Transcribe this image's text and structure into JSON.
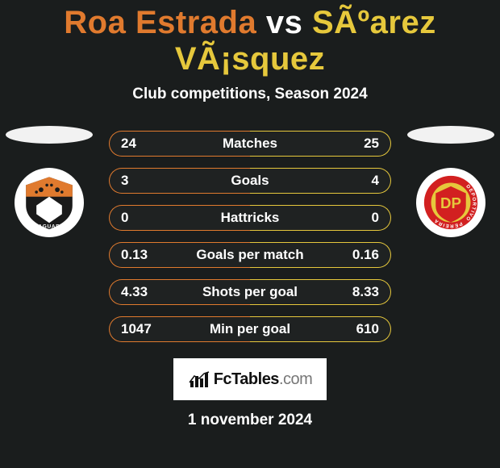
{
  "colors": {
    "background": "#1a1d1d",
    "text": "#ffffff",
    "player1_accent": "#e07a2e",
    "player2_accent": "#e6c83c",
    "title_player1": "#e07a2e",
    "title_player2": "#e6c83c",
    "title_vs": "#ffffff",
    "row_border_player1": "#e07a2e",
    "row_border_player2": "#e6c83c",
    "slot_bg": "#f2f2f2",
    "crest_bg": "#ffffff"
  },
  "title": {
    "player1": "Roa Estrada",
    "vs": "vs",
    "player2": "SÃºarez VÃ¡squez"
  },
  "subtitle": "Club competitions, Season 2024",
  "rows": [
    {
      "label": "Matches",
      "left": "24",
      "right": "25"
    },
    {
      "label": "Goals",
      "left": "3",
      "right": "4"
    },
    {
      "label": "Hattricks",
      "left": "0",
      "right": "0"
    },
    {
      "label": "Goals per match",
      "left": "0.13",
      "right": "0.16"
    },
    {
      "label": "Shots per goal",
      "left": "4.33",
      "right": "8.33"
    },
    {
      "label": "Min per goal",
      "left": "1047",
      "right": "610"
    }
  ],
  "branding": "FcTables.com",
  "date": "1 november 2024",
  "crest1": {
    "name": "jaguares-crest",
    "primary": "#e07a2e",
    "secondary": "#1a1a1a"
  },
  "crest2": {
    "name": "deportivo-pereira-crest",
    "primary": "#e6c83c",
    "secondary": "#d22020",
    "text": "DP",
    "ring_text": "DEPORTIVO PEREIRA"
  }
}
